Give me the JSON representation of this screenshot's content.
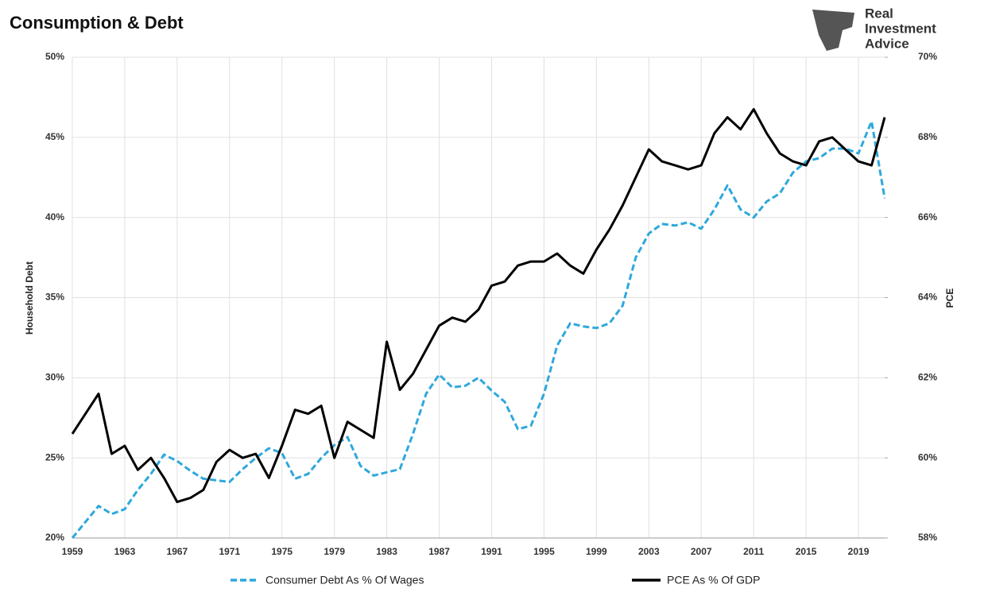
{
  "chart_data": {
    "type": "line",
    "title": "Consumption & Debt",
    "logo": [
      "Real",
      "Investment",
      "Advice"
    ],
    "ylabel": "Household Debt",
    "y2label": "PCE",
    "grid": true,
    "legend": "bottom",
    "xlim": [
      1959,
      2021
    ],
    "xticks": [
      1959,
      1963,
      1967,
      1971,
      1975,
      1979,
      1983,
      1987,
      1991,
      1995,
      1999,
      2003,
      2007,
      2011,
      2015,
      2019
    ],
    "ylim": [
      20,
      50
    ],
    "yticks": [
      {
        "value": 20,
        "label": "20%"
      },
      {
        "value": 25,
        "label": "25%"
      },
      {
        "value": 30,
        "label": "30%"
      },
      {
        "value": 35,
        "label": "35%"
      },
      {
        "value": 40,
        "label": "40%"
      },
      {
        "value": 45,
        "label": "45%"
      },
      {
        "value": 50,
        "label": "50%"
      }
    ],
    "y2lim": [
      58,
      70
    ],
    "y2ticks": [
      {
        "value": 58,
        "label": "58%"
      },
      {
        "value": 60,
        "label": "60%"
      },
      {
        "value": 62,
        "label": "62%"
      },
      {
        "value": 64,
        "label": "64%"
      },
      {
        "value": 66,
        "label": "66%"
      },
      {
        "value": 68,
        "label": "68%"
      },
      {
        "value": 70,
        "label": "70%"
      }
    ],
    "x": [
      1959,
      1960,
      1961,
      1962,
      1963,
      1964,
      1965,
      1966,
      1967,
      1968,
      1969,
      1970,
      1971,
      1972,
      1973,
      1974,
      1975,
      1976,
      1977,
      1978,
      1979,
      1980,
      1981,
      1982,
      1983,
      1984,
      1985,
      1986,
      1987,
      1988,
      1989,
      1990,
      1991,
      1992,
      1993,
      1994,
      1995,
      1996,
      1997,
      1998,
      1999,
      2000,
      2001,
      2002,
      2003,
      2004,
      2005,
      2006,
      2007,
      2008,
      2009,
      2010,
      2011,
      2012,
      2013,
      2014,
      2015,
      2016,
      2017,
      2018,
      2019,
      2020,
      2021
    ],
    "series": [
      {
        "name": "Consumer Debt As % Of Wages",
        "color": "#2ea8dc",
        "dashed": true,
        "values": [
          20.0,
          21.0,
          22.0,
          21.5,
          21.8,
          23.0,
          24.0,
          25.2,
          24.8,
          24.2,
          23.7,
          23.6,
          23.5,
          24.3,
          25.0,
          25.6,
          25.3,
          23.7,
          24.0,
          25.0,
          25.8,
          26.3,
          24.5,
          23.9,
          24.1,
          24.3,
          26.5,
          29.0,
          30.2,
          29.4,
          29.5,
          30.0,
          29.2,
          28.5,
          26.8,
          27.0,
          29.0,
          32.0,
          33.4,
          33.2,
          33.1,
          33.4,
          34.5,
          37.5,
          39.0,
          39.6,
          39.5,
          39.7,
          39.3,
          40.5,
          42.0,
          40.5,
          40.0,
          41.0,
          41.5,
          42.8,
          43.5,
          43.7,
          44.3,
          44.3,
          44.0,
          46.0,
          41.2
        ]
      },
      {
        "name": "PCE As % Of GDP",
        "color": "#000000",
        "dashed": false,
        "axis": "y2",
        "values": [
          60.6,
          61.1,
          61.6,
          60.1,
          60.3,
          59.7,
          60.0,
          59.5,
          58.9,
          59.0,
          59.2,
          59.9,
          60.2,
          60.0,
          60.1,
          59.5,
          60.3,
          61.2,
          61.1,
          61.3,
          60.0,
          60.9,
          60.7,
          60.5,
          62.9,
          61.7,
          62.1,
          62.7,
          63.3,
          63.5,
          63.4,
          63.7,
          64.3,
          64.4,
          64.8,
          64.9,
          64.9,
          65.1,
          64.8,
          64.6,
          65.2,
          65.7,
          66.3,
          67.0,
          67.7,
          67.4,
          67.3,
          67.2,
          67.3,
          68.1,
          68.5,
          68.2,
          68.7,
          68.1,
          67.6,
          67.4,
          67.3,
          67.9,
          68.0,
          67.7,
          67.4,
          67.3,
          68.5
        ]
      }
    ]
  }
}
